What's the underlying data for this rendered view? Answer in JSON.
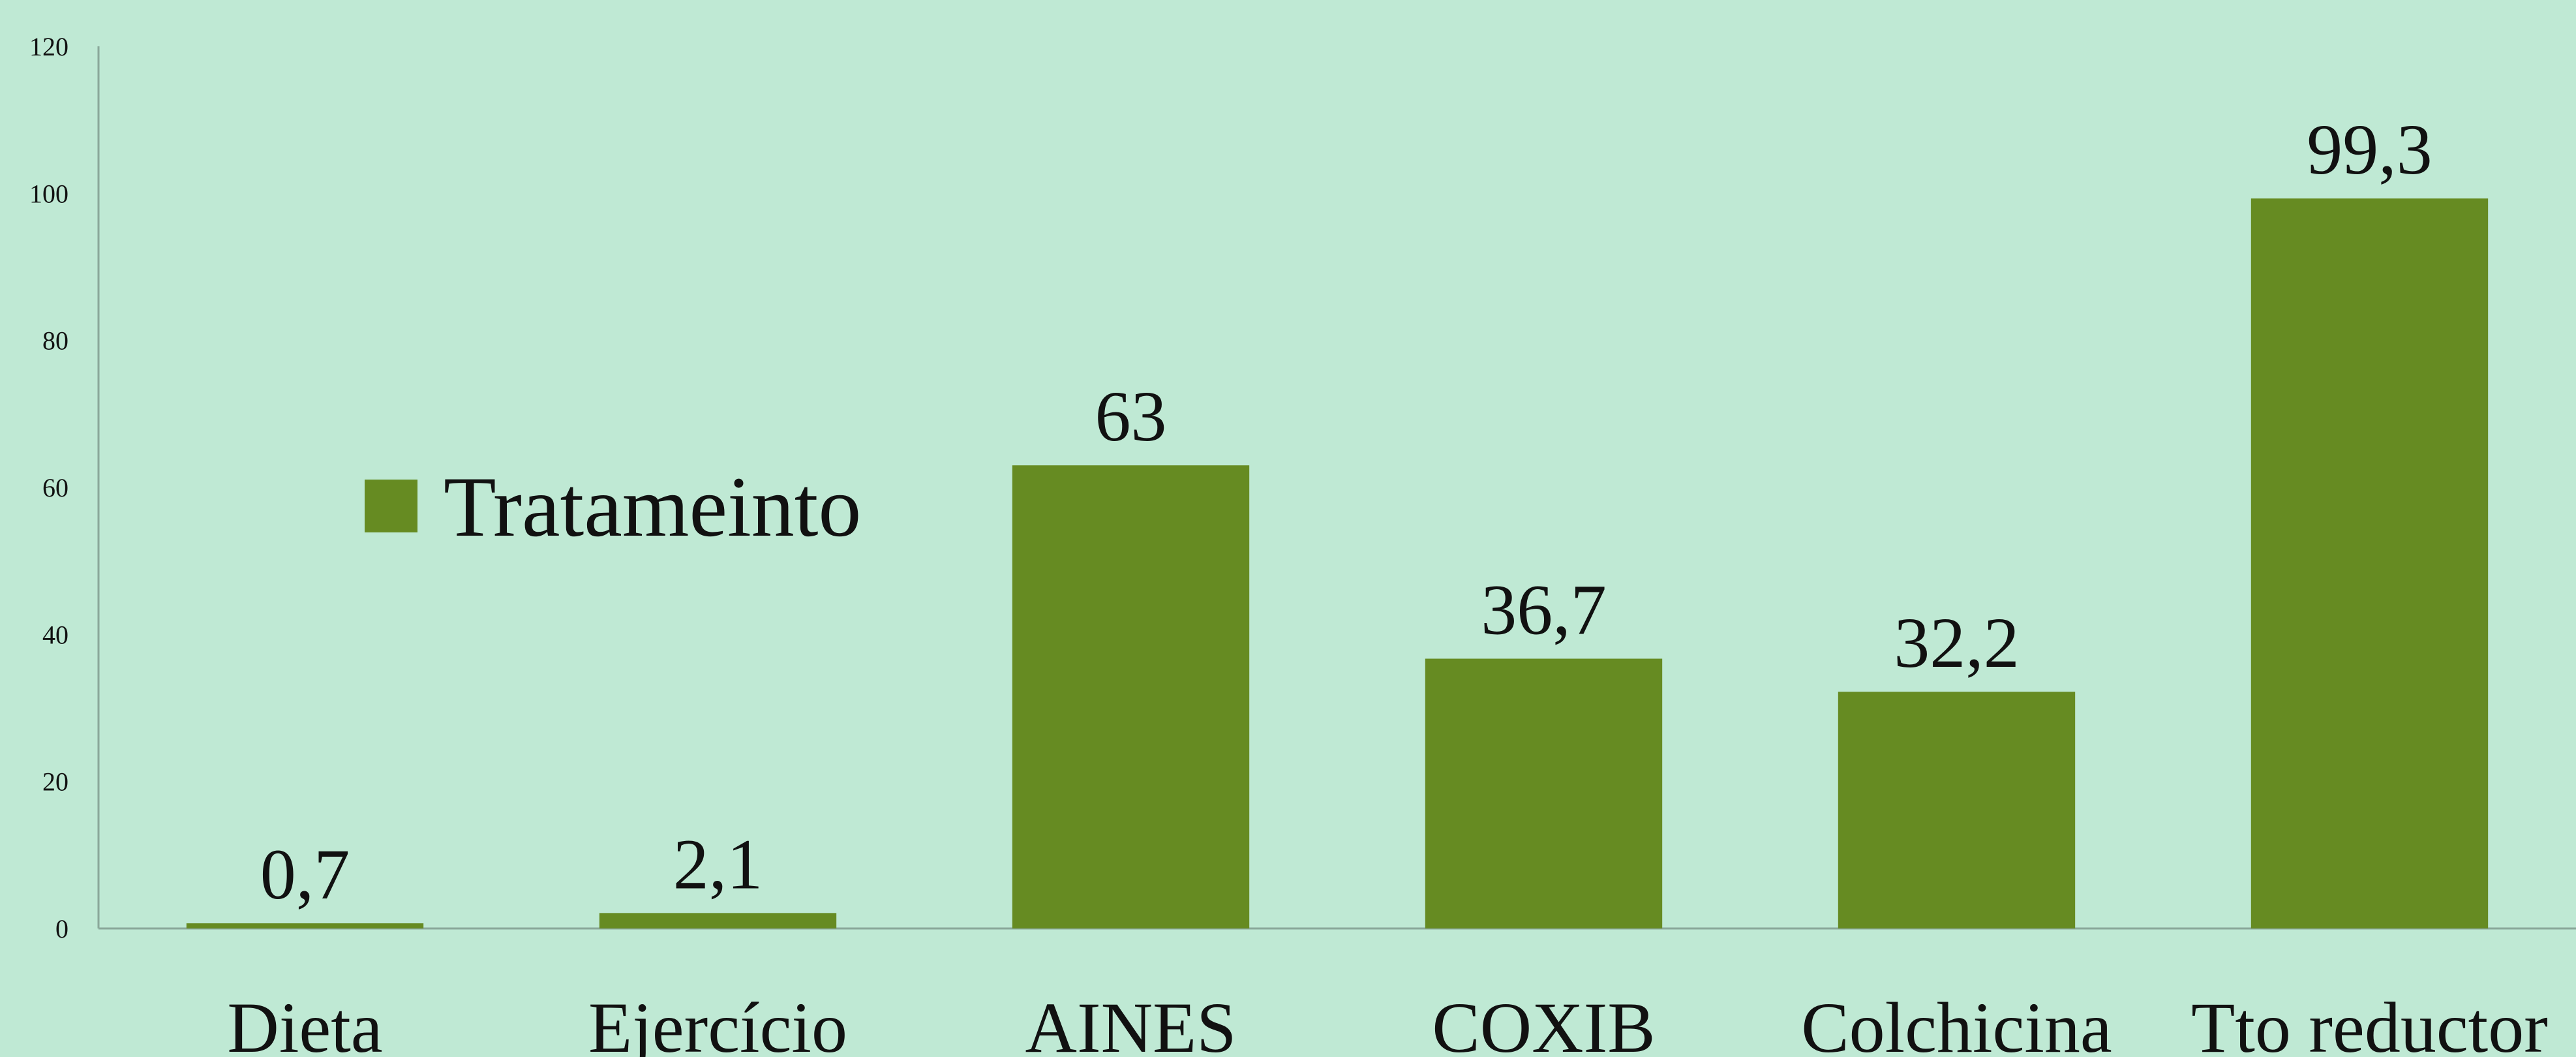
{
  "chart_data": {
    "type": "bar",
    "categories": [
      "Dieta",
      "Ejercício",
      "AINES",
      "COXIB",
      "Colchicina",
      "Tto reductor"
    ],
    "series": [
      {
        "name": "Tratameinto",
        "color": "#668b22",
        "values": [
          0.7,
          2.1,
          63,
          36.7,
          32.2,
          99.3
        ],
        "value_labels": [
          "0,7",
          "2,1",
          "63",
          "36,7",
          "32,2",
          "99,3"
        ]
      }
    ],
    "ylim": [
      0,
      120
    ],
    "yticks": [
      0,
      20,
      40,
      60,
      80,
      100,
      120
    ],
    "grid": false,
    "legend": "left"
  }
}
